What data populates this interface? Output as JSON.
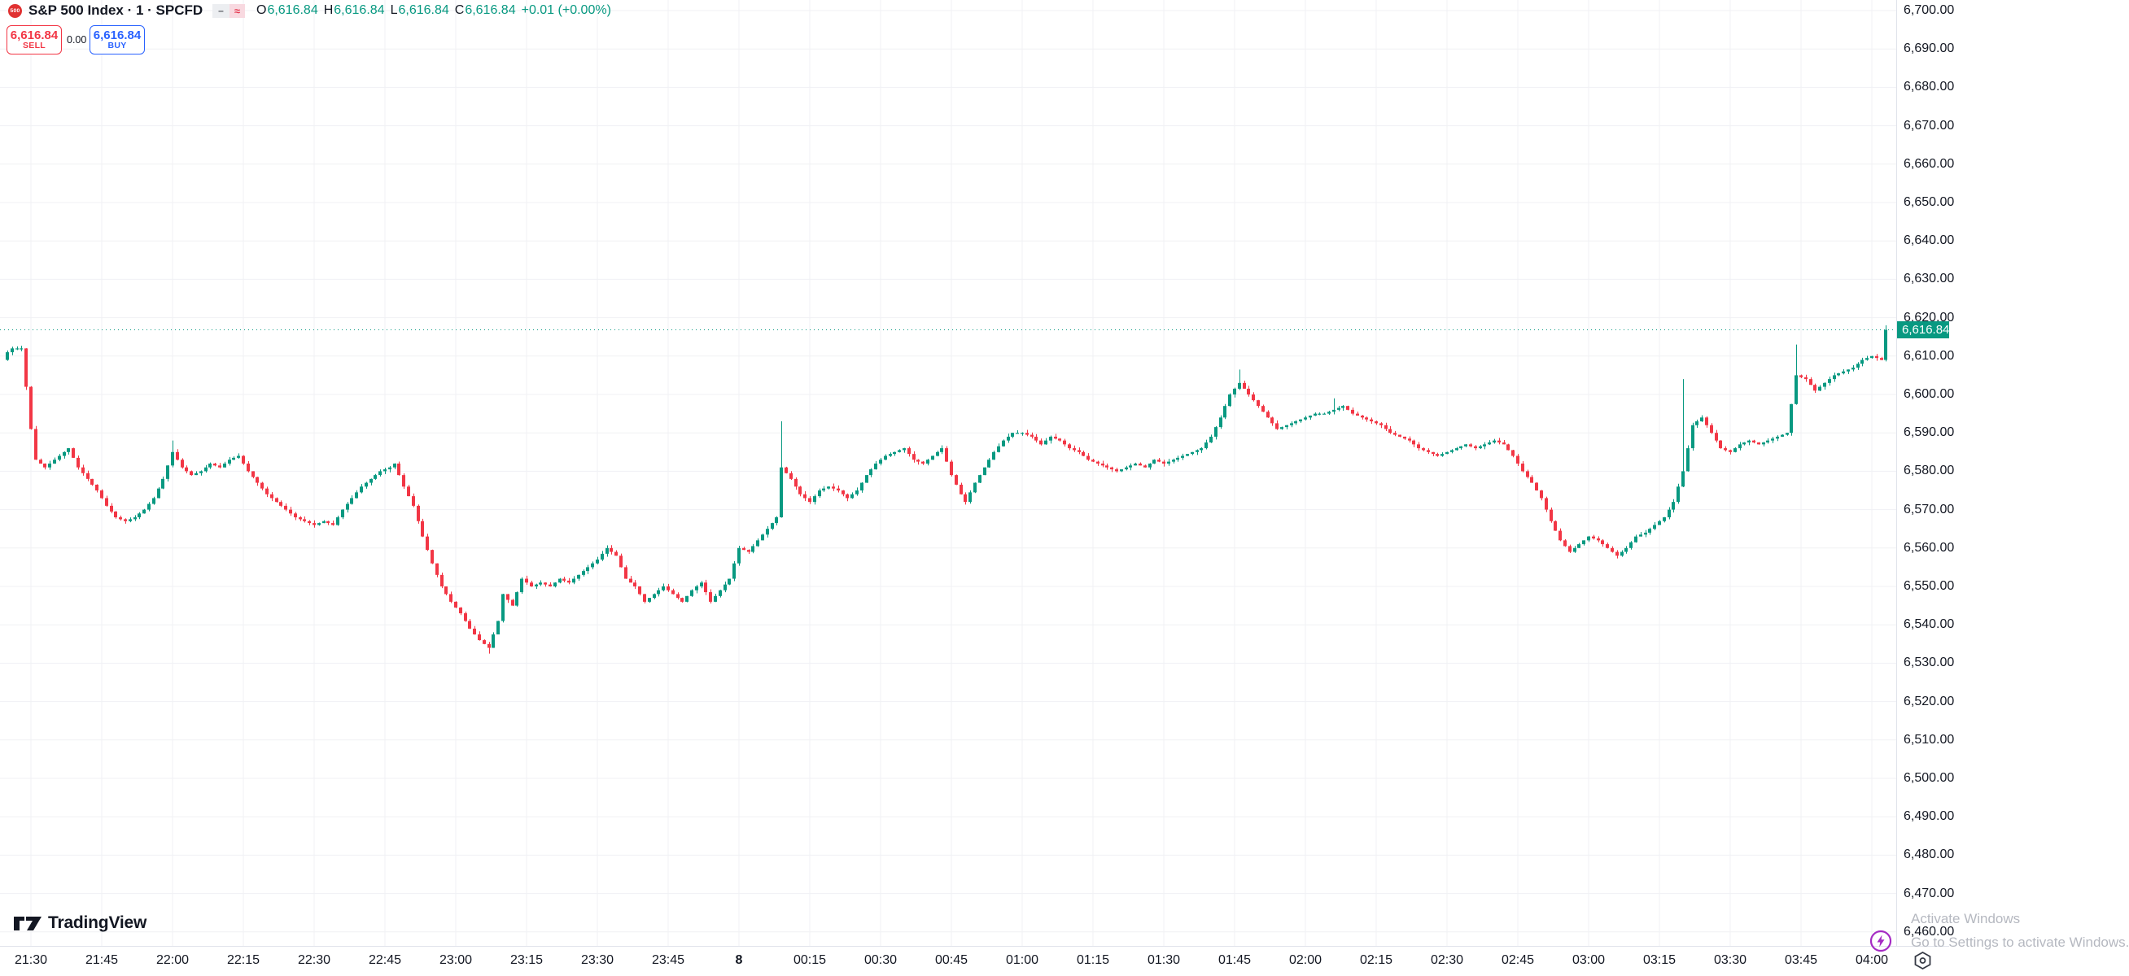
{
  "header": {
    "logo_text": "500",
    "title": "S&P 500 Index · 1 · SPCFD",
    "status": {
      "dash": "–",
      "approx": "≈"
    },
    "ohlc": {
      "o_label": "O",
      "o": "6,616.84",
      "h_label": "H",
      "h": "6,616.84",
      "l_label": "L",
      "l": "6,616.84",
      "c_label": "C",
      "c": "6,616.84",
      "change": "+0.01 (+0.00%)"
    }
  },
  "trade_panel": {
    "sell_price": "6,616.84",
    "sell_label": "SELL",
    "spread": "0.00",
    "buy_price": "6,616.84",
    "buy_label": "BUY"
  },
  "footer": {
    "logo_text": "TradingView"
  },
  "watermark": {
    "line1": "Activate Windows",
    "line2": "Go to Settings to activate Windows."
  },
  "chart_data": {
    "type": "candlestick",
    "symbol": "S&P 500 Index",
    "interval": "1",
    "exchange": "SPCFD",
    "title": "S&P 500 Index · 1 · SPCFD",
    "current_price": "6,616.84",
    "current_price_value": 6616.84,
    "colors": {
      "up": "#089981",
      "down": "#F23645",
      "grid": "#f0f1f4",
      "axis_text": "#131722"
    },
    "price_axis": {
      "min": 6460,
      "max": 6700,
      "step": 10,
      "labels": [
        "6,460.00",
        "6,470.00",
        "6,480.00",
        "6,490.00",
        "6,500.00",
        "6,510.00",
        "6,520.00",
        "6,530.00",
        "6,540.00",
        "6,550.00",
        "6,560.00",
        "6,570.00",
        "6,580.00",
        "6,590.00",
        "6,600.00",
        "6,610.00",
        "6,620.00",
        "6,630.00",
        "6,640.00",
        "6,650.00",
        "6,660.00",
        "6,670.00",
        "6,680.00",
        "6,690.00",
        "6,700.00"
      ]
    },
    "time_axis": {
      "labels": [
        {
          "t": "21:30",
          "text": "21:30"
        },
        {
          "t": "21:45",
          "text": "21:45"
        },
        {
          "t": "22:00",
          "text": "22:00"
        },
        {
          "t": "22:15",
          "text": "22:15"
        },
        {
          "t": "22:30",
          "text": "22:30"
        },
        {
          "t": "22:45",
          "text": "22:45"
        },
        {
          "t": "23:00",
          "text": "23:00"
        },
        {
          "t": "23:15",
          "text": "23:15"
        },
        {
          "t": "23:30",
          "text": "23:30"
        },
        {
          "t": "23:45",
          "text": "23:45"
        },
        {
          "t": "00:00",
          "text": "8",
          "bold": true
        },
        {
          "t": "00:15",
          "text": "00:15"
        },
        {
          "t": "00:30",
          "text": "00:30"
        },
        {
          "t": "00:45",
          "text": "00:45"
        },
        {
          "t": "01:00",
          "text": "01:00"
        },
        {
          "t": "01:15",
          "text": "01:15"
        },
        {
          "t": "01:30",
          "text": "01:30"
        },
        {
          "t": "01:45",
          "text": "01:45"
        },
        {
          "t": "02:00",
          "text": "02:00"
        },
        {
          "t": "02:15",
          "text": "02:15"
        },
        {
          "t": "02:30",
          "text": "02:30"
        },
        {
          "t": "02:45",
          "text": "02:45"
        },
        {
          "t": "03:00",
          "text": "03:00"
        },
        {
          "t": "03:15",
          "text": "03:15"
        },
        {
          "t": "03:30",
          "text": "03:30"
        },
        {
          "t": "03:45",
          "text": "03:45"
        },
        {
          "t": "04:00",
          "text": "04:00"
        }
      ]
    },
    "anchors": [
      [
        "21:24",
        6609
      ],
      [
        "21:25",
        6611
      ],
      [
        "21:26",
        6612
      ],
      [
        "21:27",
        6612
      ],
      [
        "21:28",
        6612
      ],
      [
        "21:29",
        6602
      ],
      [
        "21:30",
        6591
      ],
      [
        "21:31",
        6583
      ],
      [
        "21:33",
        6581
      ],
      [
        "21:35",
        6583
      ],
      [
        "21:37",
        6585
      ],
      [
        "21:38",
        6586
      ],
      [
        "21:40",
        6581
      ],
      [
        "21:42",
        6578
      ],
      [
        "21:44",
        6575
      ],
      [
        "21:46",
        6571
      ],
      [
        "21:48",
        6568
      ],
      [
        "21:50",
        6567
      ],
      [
        "21:52",
        6568
      ],
      [
        "21:54",
        6570
      ],
      [
        "21:56",
        6573
      ],
      [
        "21:58",
        6578
      ],
      [
        "22:00",
        6585
      ],
      [
        "22:02",
        6581
      ],
      [
        "22:04",
        6579
      ],
      [
        "22:06",
        6580
      ],
      [
        "22:08",
        6582
      ],
      [
        "22:10",
        6581
      ],
      [
        "22:12",
        6583
      ],
      [
        "22:14",
        6584
      ],
      [
        "22:16",
        6580
      ],
      [
        "22:18",
        6577
      ],
      [
        "22:20",
        6574
      ],
      [
        "22:22",
        6572
      ],
      [
        "22:24",
        6570
      ],
      [
        "22:26",
        6568
      ],
      [
        "22:28",
        6567
      ],
      [
        "22:30",
        6566
      ],
      [
        "22:32",
        6567
      ],
      [
        "22:34",
        6566
      ],
      [
        "22:36",
        6570
      ],
      [
        "22:38",
        6573
      ],
      [
        "22:40",
        6576
      ],
      [
        "22:42",
        6578
      ],
      [
        "22:44",
        6580
      ],
      [
        "22:46",
        6581
      ],
      [
        "22:47",
        6582
      ],
      [
        "22:49",
        6576
      ],
      [
        "22:51",
        6571
      ],
      [
        "22:53",
        6563
      ],
      [
        "22:55",
        6556
      ],
      [
        "22:57",
        6550
      ],
      [
        "22:59",
        6546
      ],
      [
        "23:01",
        6543
      ],
      [
        "23:03",
        6539
      ],
      [
        "23:05",
        6536
      ],
      [
        "23:07",
        6534
      ],
      [
        "23:09",
        6541
      ],
      [
        "23:10",
        6548
      ],
      [
        "23:12",
        6545
      ],
      [
        "23:14",
        6552
      ],
      [
        "23:16",
        6550
      ],
      [
        "23:18",
        6551
      ],
      [
        "23:20",
        6550
      ],
      [
        "23:22",
        6552
      ],
      [
        "23:24",
        6551
      ],
      [
        "23:26",
        6553
      ],
      [
        "23:28",
        6555
      ],
      [
        "23:30",
        6557
      ],
      [
        "23:32",
        6560
      ],
      [
        "23:34",
        6558
      ],
      [
        "23:36",
        6552
      ],
      [
        "23:38",
        6550
      ],
      [
        "23:40",
        6546
      ],
      [
        "23:42",
        6548
      ],
      [
        "23:44",
        6550
      ],
      [
        "23:46",
        6548
      ],
      [
        "23:48",
        6546
      ],
      [
        "23:50",
        6549
      ],
      [
        "23:52",
        6551
      ],
      [
        "23:54",
        6546
      ],
      [
        "23:56",
        6549
      ],
      [
        "23:58",
        6552
      ],
      [
        "00:00",
        6560
      ],
      [
        "00:02",
        6559
      ],
      [
        "00:04",
        6562
      ],
      [
        "00:06",
        6565
      ],
      [
        "00:08",
        6568
      ],
      [
        "00:09",
        6581
      ],
      [
        "00:11",
        6578
      ],
      [
        "00:13",
        6574
      ],
      [
        "00:15",
        6572
      ],
      [
        "00:17",
        6575
      ],
      [
        "00:19",
        6576
      ],
      [
        "00:21",
        6575
      ],
      [
        "00:23",
        6573
      ],
      [
        "00:25",
        6575
      ],
      [
        "00:27",
        6579
      ],
      [
        "00:29",
        6582
      ],
      [
        "00:31",
        6584
      ],
      [
        "00:33",
        6585
      ],
      [
        "00:35",
        6586
      ],
      [
        "00:37",
        6583
      ],
      [
        "00:39",
        6582
      ],
      [
        "00:41",
        6584
      ],
      [
        "00:43",
        6586
      ],
      [
        "00:45",
        6579
      ],
      [
        "00:47",
        6574
      ],
      [
        "00:48",
        6572
      ],
      [
        "00:50",
        6577
      ],
      [
        "00:52",
        6581
      ],
      [
        "00:54",
        6585
      ],
      [
        "00:56",
        6588
      ],
      [
        "00:58",
        6590
      ],
      [
        "01:00",
        6590
      ],
      [
        "01:02",
        6589
      ],
      [
        "01:04",
        6587
      ],
      [
        "01:06",
        6589
      ],
      [
        "01:08",
        6588
      ],
      [
        "01:10",
        6586
      ],
      [
        "01:12",
        6585
      ],
      [
        "01:14",
        6583
      ],
      [
        "01:16",
        6582
      ],
      [
        "01:18",
        6581
      ],
      [
        "01:20",
        6580
      ],
      [
        "01:22",
        6581
      ],
      [
        "01:24",
        6582
      ],
      [
        "01:26",
        6581
      ],
      [
        "01:28",
        6583
      ],
      [
        "01:30",
        6582
      ],
      [
        "01:32",
        6583
      ],
      [
        "01:34",
        6584
      ],
      [
        "01:36",
        6585
      ],
      [
        "01:38",
        6586
      ],
      [
        "01:40",
        6589
      ],
      [
        "01:42",
        6594
      ],
      [
        "01:44",
        6600
      ],
      [
        "01:46",
        6603
      ],
      [
        "01:48",
        6600
      ],
      [
        "01:50",
        6597
      ],
      [
        "01:52",
        6594
      ],
      [
        "01:54",
        6591
      ],
      [
        "01:56",
        6592
      ],
      [
        "01:58",
        6593
      ],
      [
        "02:00",
        6594
      ],
      [
        "02:02",
        6595
      ],
      [
        "02:04",
        6595
      ],
      [
        "02:06",
        6596
      ],
      [
        "02:08",
        6597
      ],
      [
        "02:10",
        6595
      ],
      [
        "02:12",
        6594
      ],
      [
        "02:14",
        6593
      ],
      [
        "02:16",
        6592
      ],
      [
        "02:18",
        6590
      ],
      [
        "02:20",
        6589
      ],
      [
        "02:22",
        6588
      ],
      [
        "02:24",
        6586
      ],
      [
        "02:26",
        6585
      ],
      [
        "02:28",
        6584
      ],
      [
        "02:30",
        6585
      ],
      [
        "02:32",
        6586
      ],
      [
        "02:34",
        6587
      ],
      [
        "02:36",
        6586
      ],
      [
        "02:38",
        6587
      ],
      [
        "02:40",
        6588
      ],
      [
        "02:42",
        6587
      ],
      [
        "02:44",
        6584
      ],
      [
        "02:46",
        6580
      ],
      [
        "02:48",
        6577
      ],
      [
        "02:50",
        6573
      ],
      [
        "02:52",
        6567
      ],
      [
        "02:54",
        6562
      ],
      [
        "02:56",
        6559
      ],
      [
        "02:58",
        6561
      ],
      [
        "03:00",
        6563
      ],
      [
        "03:02",
        6562
      ],
      [
        "03:04",
        6560
      ],
      [
        "03:06",
        6558
      ],
      [
        "03:08",
        6560
      ],
      [
        "03:10",
        6563
      ],
      [
        "03:12",
        6564
      ],
      [
        "03:14",
        6566
      ],
      [
        "03:16",
        6568
      ],
      [
        "03:18",
        6572
      ],
      [
        "03:20",
        6580
      ],
      [
        "03:22",
        6592
      ],
      [
        "03:24",
        6594
      ],
      [
        "03:26",
        6590
      ],
      [
        "03:28",
        6586
      ],
      [
        "03:30",
        6585
      ],
      [
        "03:32",
        6587
      ],
      [
        "03:34",
        6588
      ],
      [
        "03:36",
        6587
      ],
      [
        "03:38",
        6588
      ],
      [
        "03:40",
        6589
      ],
      [
        "03:42",
        6590
      ],
      [
        "03:44",
        6605
      ],
      [
        "03:46",
        6604
      ],
      [
        "03:48",
        6601
      ],
      [
        "03:50",
        6603
      ],
      [
        "03:52",
        6605
      ],
      [
        "03:54",
        6606
      ],
      [
        "03:56",
        6607
      ],
      [
        "03:58",
        6609
      ],
      [
        "04:00",
        6610
      ],
      [
        "04:02",
        6609
      ],
      [
        "04:03",
        6616.84
      ]
    ],
    "spikes": [
      {
        "t": "22:00",
        "high": 6588
      },
      {
        "t": "23:07",
        "low": 6532.5
      },
      {
        "t": "00:09",
        "high": 6593
      },
      {
        "t": "01:46",
        "high": 6606.5
      },
      {
        "t": "02:06",
        "high": 6599
      },
      {
        "t": "03:20",
        "high": 6604
      },
      {
        "t": "03:44",
        "high": 6613
      },
      {
        "t": "04:03",
        "high": 6618
      }
    ]
  }
}
